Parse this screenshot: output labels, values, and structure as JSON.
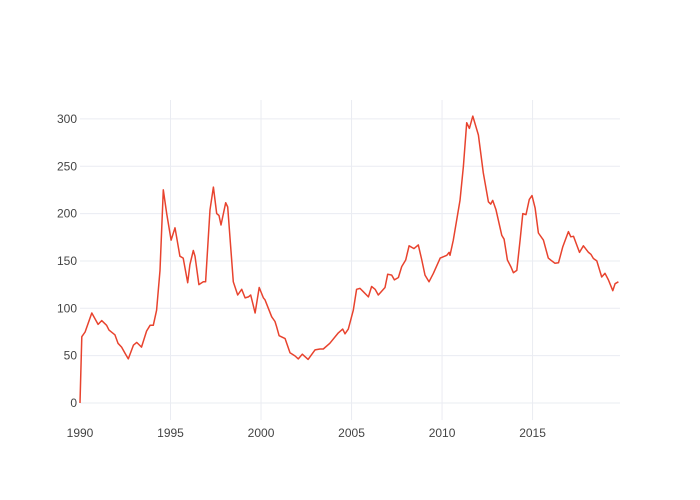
{
  "chart_data": {
    "type": "line",
    "title": "",
    "xlabel": "",
    "ylabel": "",
    "xlim": [
      1990,
      2019.83
    ],
    "ylim": [
      -18,
      320
    ],
    "grid": true,
    "legend": "none",
    "line_color": "#e8432e",
    "x_ticks": [
      "1990",
      "1995",
      "2000",
      "2005",
      "2010",
      "2015"
    ],
    "x_tick_values": [
      1990,
      1995,
      2000,
      2005,
      2010,
      2015
    ],
    "y_ticks": [
      "0",
      "50",
      "100",
      "150",
      "200",
      "250",
      "300"
    ],
    "y_tick_values": [
      0,
      50,
      100,
      150,
      200,
      250,
      300
    ],
    "series": [
      {
        "x": [
          1990.0,
          1990.1,
          1990.28,
          1990.65,
          1991.0,
          1991.2,
          1991.47,
          1991.6,
          1991.93,
          1992.1,
          1992.3,
          1992.5,
          1992.67,
          1992.95,
          1993.13,
          1993.4,
          1993.68,
          1993.87,
          1994.05,
          1994.23,
          1994.42,
          1994.6,
          1994.79,
          1995.03,
          1995.25,
          1995.52,
          1995.7,
          1995.95,
          1996.07,
          1996.26,
          1996.35,
          1996.57,
          1996.81,
          1996.94,
          1997.18,
          1997.37,
          1997.55,
          1997.68,
          1997.79,
          1998.05,
          1998.16,
          1998.47,
          1998.71,
          1998.93,
          1999.12,
          1999.3,
          1999.43,
          1999.67,
          1999.9,
          2000.13,
          2000.22,
          2000.59,
          2000.77,
          2000.86,
          2001.0,
          2001.33,
          2001.6,
          2001.88,
          2002.06,
          2002.28,
          2002.6,
          2002.98,
          2003.26,
          2003.44,
          2003.8,
          2004.27,
          2004.51,
          2004.64,
          2004.82,
          2005.1,
          2005.28,
          2005.47,
          2005.65,
          2005.93,
          2006.11,
          2006.3,
          2006.48,
          2006.85,
          2007.0,
          2007.22,
          2007.37,
          2007.59,
          2007.77,
          2007.99,
          2008.18,
          2008.45,
          2008.69,
          2008.88,
          2009.06,
          2009.28,
          2009.52,
          2009.9,
          2010.26,
          2010.39,
          2010.44,
          2010.62,
          2010.99,
          2011.18,
          2011.36,
          2011.51,
          2011.7,
          2012.01,
          2012.28,
          2012.56,
          2012.69,
          2012.8,
          2012.98,
          2013.3,
          2013.43,
          2013.61,
          2013.8,
          2013.94,
          2014.13,
          2014.31,
          2014.46,
          2014.64,
          2014.82,
          2014.97,
          2015.14,
          2015.32,
          2015.6,
          2015.87,
          2016.06,
          2016.24,
          2016.43,
          2016.67,
          2016.98,
          2017.11,
          2017.26,
          2017.59,
          2017.81,
          2018.09,
          2018.22,
          2018.36,
          2018.55,
          2018.82,
          2019.0,
          2019.19,
          2019.43,
          2019.56,
          2019.74
        ],
        "y": [
          0,
          70,
          75,
          95,
          83,
          87,
          82,
          77,
          72,
          63,
          59,
          52,
          46.5,
          61,
          64,
          59,
          76,
          82,
          82,
          98,
          140,
          225,
          200,
          172,
          185,
          155,
          153,
          127,
          146,
          161,
          155,
          125,
          128,
          128,
          204,
          228,
          200,
          198,
          188,
          211.5,
          207,
          128,
          114,
          120,
          111,
          112,
          114,
          95,
          122,
          111,
          109,
          91,
          86,
          80.6,
          71,
          68,
          53,
          49.6,
          46.5,
          51.5,
          46,
          56,
          57,
          57,
          63,
          74,
          78,
          73,
          78,
          98,
          120,
          121,
          117.5,
          112,
          123,
          120,
          114,
          122,
          136,
          135,
          130,
          132.5,
          144,
          151,
          166,
          163,
          167,
          151,
          135,
          128,
          137,
          153,
          156,
          159,
          156,
          172,
          214,
          250,
          296,
          290,
          303,
          283,
          243,
          212.5,
          210,
          214,
          204,
          177,
          173,
          151,
          144,
          137.6,
          140,
          172,
          200,
          199,
          215,
          219,
          206,
          179.5,
          172,
          153,
          150,
          147.5,
          148,
          165,
          181,
          175.5,
          176,
          159,
          166,
          159,
          157,
          152.6,
          150,
          133,
          137,
          130,
          118.6,
          126,
          128
        ]
      }
    ]
  }
}
